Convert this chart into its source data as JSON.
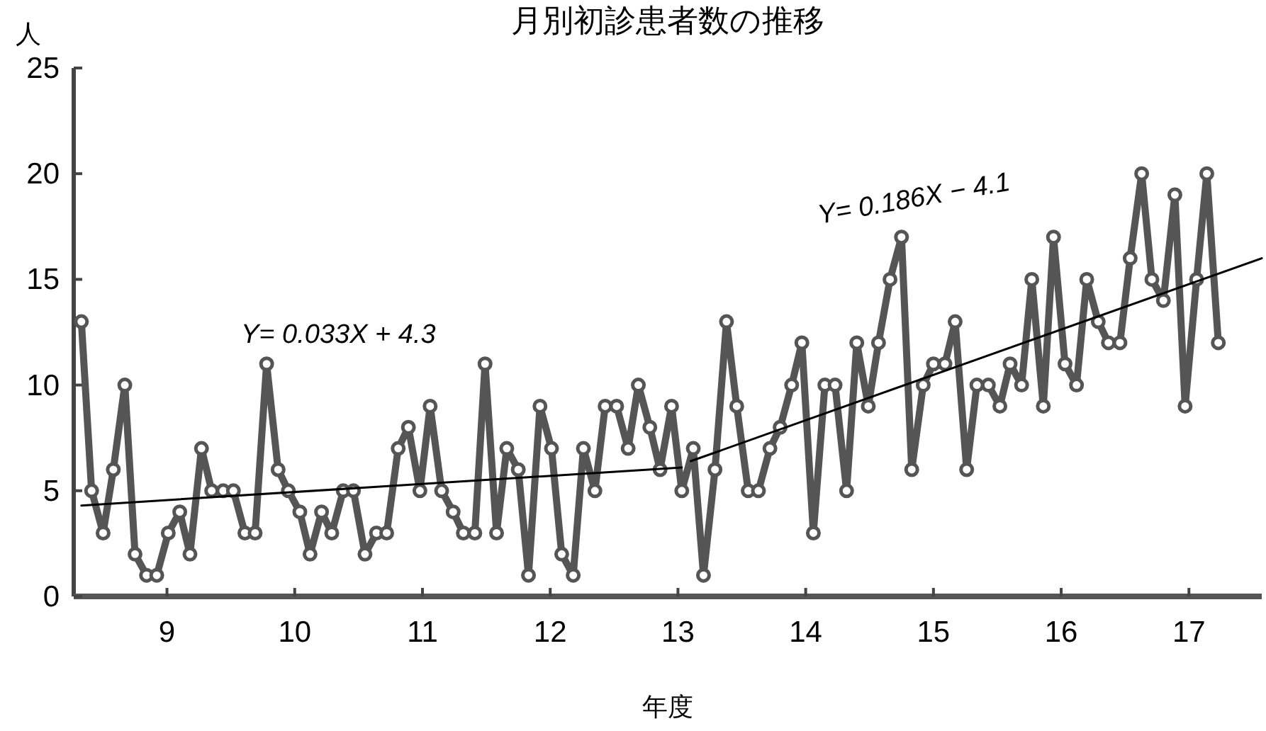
{
  "chart_data": {
    "type": "line",
    "title": "月別初診患者数の推移",
    "ylabel": "人",
    "xlabel": "年度",
    "annotations": [
      "Y= 0.033X + 4.3",
      "Y= 0.186X − 4.1"
    ],
    "xlim": [
      8.27,
      17.57
    ],
    "xticks": [
      9,
      10,
      11,
      12,
      13,
      14,
      15,
      16,
      17
    ],
    "ylim": [
      0,
      25
    ],
    "yticks": [
      0,
      5,
      10,
      15,
      20,
      25
    ],
    "series": [
      {
        "color": "#555555",
        "marker": "circle",
        "line_style": "solid",
        "x": [
          8.33,
          8.41,
          8.5,
          8.58,
          8.67,
          8.75,
          8.84,
          8.92,
          9.01,
          9.1,
          9.18,
          9.27,
          9.35,
          9.44,
          9.52,
          9.61,
          9.69,
          9.78,
          9.87,
          9.95,
          10.04,
          10.12,
          10.21,
          10.29,
          10.38,
          10.46,
          10.55,
          10.64,
          10.72,
          10.81,
          10.89,
          10.98,
          11.06,
          11.15,
          11.24,
          11.32,
          11.41,
          11.49,
          11.58,
          11.66,
          11.75,
          11.83,
          11.92,
          12.01,
          12.09,
          12.18,
          12.26,
          12.35,
          12.43,
          12.52,
          12.61,
          12.69,
          12.78,
          12.86,
          12.95,
          13.03,
          13.12,
          13.2,
          13.29,
          13.38,
          13.46,
          13.55,
          13.63,
          13.72,
          13.8,
          13.89,
          13.97,
          14.06,
          14.15,
          14.23,
          14.32,
          14.4,
          14.49,
          14.57,
          14.66,
          14.75,
          14.83,
          14.92,
          15.0,
          15.09,
          15.17,
          15.26,
          15.34,
          15.43,
          15.52,
          15.6,
          15.69,
          15.77,
          15.86,
          15.94,
          16.03,
          16.12,
          16.2,
          16.29,
          16.37,
          16.46,
          16.54,
          16.63,
          16.71,
          16.8,
          16.89,
          16.97,
          17.06,
          17.14,
          17.23
        ],
        "values": [
          13,
          5,
          3,
          6,
          10,
          2,
          1,
          1,
          3,
          4,
          2,
          7,
          5,
          5,
          5,
          3,
          3,
          11,
          6,
          5,
          4,
          2,
          4,
          3,
          5,
          5,
          2,
          3,
          3,
          7,
          8,
          5,
          9,
          5,
          4,
          3,
          3,
          11,
          3,
          7,
          6,
          1,
          9,
          7,
          2,
          1,
          7,
          5,
          9,
          9,
          7,
          10,
          8,
          6,
          9,
          5,
          7,
          1,
          6,
          13,
          9,
          5,
          5,
          7,
          8,
          10,
          12,
          3,
          10,
          10,
          5,
          12,
          9,
          12,
          15,
          17,
          6,
          10,
          11,
          11,
          13,
          6,
          10,
          10,
          9,
          11,
          10,
          15,
          9,
          17,
          11,
          10,
          15,
          13,
          12,
          12,
          16,
          20,
          15,
          14,
          19,
          9,
          15,
          20,
          12
        ]
      },
      {
        "color": "#000000",
        "marker": "none",
        "line_style": "solid",
        "x": [
          8.33,
          13.03
        ],
        "values": [
          4.3,
          6.1
        ]
      },
      {
        "color": "#000000",
        "marker": "none",
        "line_style": "solid",
        "x": [
          13.1,
          17.57
        ],
        "values": [
          6.4,
          16.0
        ]
      }
    ]
  }
}
